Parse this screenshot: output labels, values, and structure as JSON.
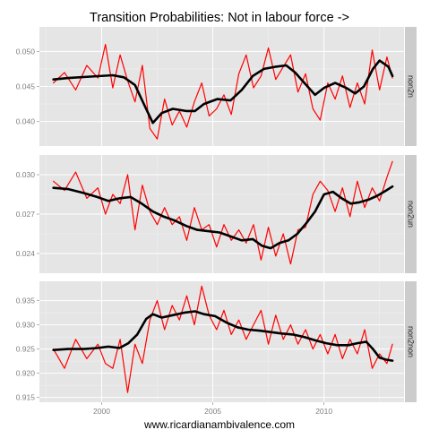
{
  "chart_data": {
    "type": "line",
    "title": "Transition Probabilities: Not in labour force ->",
    "caption": "www.ricardianambivalence.com",
    "xlabel": "",
    "ylabel": "",
    "grid": true,
    "legend": "none",
    "colors": {
      "raw": "#ff0000",
      "smooth": "#000000",
      "panel": "#e5e5e5",
      "strip": "#cccccc"
    },
    "x_axis": {
      "ticks": [
        2000,
        2005,
        2010
      ],
      "xlim": [
        1997.2,
        2013.6
      ]
    },
    "panels": [
      {
        "strip": "non2n",
        "ylim": [
          0.0365,
          0.0535
        ],
        "yticks": [
          0.04,
          0.045,
          0.05
        ],
        "ytick_labels": [
          "0.040",
          "0.045",
          "0.050"
        ],
        "series": [
          {
            "name": "raw",
            "x": [
              1997.83,
              1998.33,
              1998.83,
              1999.33,
              1999.83,
              2000.17,
              2000.5,
              2000.83,
              2001.17,
              2001.5,
              2001.83,
              2002.17,
              2002.5,
              2002.83,
              2003.17,
              2003.5,
              2003.83,
              2004.17,
              2004.5,
              2004.83,
              2005.17,
              2005.5,
              2005.83,
              2006.17,
              2006.5,
              2006.83,
              2007.17,
              2007.5,
              2007.83,
              2008.17,
              2008.5,
              2008.83,
              2009.17,
              2009.5,
              2009.83,
              2010.17,
              2010.5,
              2010.83,
              2011.17,
              2011.5,
              2011.83,
              2012.17,
              2012.5,
              2012.83,
              2013.08
            ],
            "y": [
              0.0455,
              0.047,
              0.0445,
              0.048,
              0.0462,
              0.051,
              0.0448,
              0.0495,
              0.0458,
              0.0428,
              0.048,
              0.039,
              0.0375,
              0.0432,
              0.0395,
              0.0415,
              0.0392,
              0.0428,
              0.0455,
              0.0408,
              0.0418,
              0.0438,
              0.041,
              0.0468,
              0.0495,
              0.0448,
              0.0465,
              0.0505,
              0.046,
              0.0478,
              0.0495,
              0.0442,
              0.0468,
              0.0418,
              0.0402,
              0.0455,
              0.0432,
              0.0465,
              0.042,
              0.0455,
              0.0425,
              0.0502,
              0.0445,
              0.0492,
              0.0462
            ]
          },
          {
            "name": "smooth",
            "x": [
              1997.83,
              1998.5,
              1999.5,
              2000.5,
              2001.0,
              2001.5,
              2002.0,
              2002.3,
              2002.7,
              2003.2,
              2003.8,
              2004.2,
              2004.6,
              2005.2,
              2005.8,
              2006.3,
              2006.8,
              2007.3,
              2007.8,
              2008.3,
              2008.7,
              2009.2,
              2009.6,
              2010.0,
              2010.5,
              2011.0,
              2011.4,
              2011.8,
              2012.2,
              2012.5,
              2012.9,
              2013.08
            ],
            "y": [
              0.046,
              0.0462,
              0.0464,
              0.0466,
              0.0463,
              0.0452,
              0.0418,
              0.0398,
              0.0412,
              0.0418,
              0.0415,
              0.0415,
              0.0425,
              0.0432,
              0.043,
              0.0445,
              0.0465,
              0.0475,
              0.0478,
              0.048,
              0.047,
              0.0452,
              0.0438,
              0.0448,
              0.0455,
              0.0448,
              0.044,
              0.045,
              0.0475,
              0.0487,
              0.0478,
              0.0465
            ]
          }
        ]
      },
      {
        "strip": "non2un",
        "ylim": [
          0.0225,
          0.0315
        ],
        "yticks": [
          0.024,
          0.027,
          0.03
        ],
        "ytick_labels": [
          "0.024",
          "0.027",
          "0.030"
        ],
        "series": [
          {
            "name": "raw",
            "x": [
              1997.83,
              1998.33,
              1998.83,
              1999.33,
              1999.83,
              2000.17,
              2000.5,
              2000.83,
              2001.17,
              2001.5,
              2001.83,
              2002.17,
              2002.5,
              2002.83,
              2003.17,
              2003.5,
              2003.83,
              2004.17,
              2004.5,
              2004.83,
              2005.17,
              2005.5,
              2005.83,
              2006.17,
              2006.5,
              2006.83,
              2007.17,
              2007.5,
              2007.83,
              2008.17,
              2008.5,
              2008.83,
              2009.17,
              2009.5,
              2009.83,
              2010.17,
              2010.5,
              2010.83,
              2011.17,
              2011.5,
              2011.83,
              2012.17,
              2012.5,
              2012.83,
              2013.08
            ],
            "y": [
              0.0295,
              0.0288,
              0.0302,
              0.0282,
              0.029,
              0.027,
              0.0285,
              0.0278,
              0.03,
              0.0258,
              0.0292,
              0.0272,
              0.0262,
              0.0275,
              0.0262,
              0.0268,
              0.025,
              0.0275,
              0.0258,
              0.0262,
              0.0245,
              0.0262,
              0.025,
              0.0258,
              0.0248,
              0.0262,
              0.0235,
              0.026,
              0.0238,
              0.0255,
              0.0232,
              0.0258,
              0.026,
              0.0285,
              0.0295,
              0.0288,
              0.0272,
              0.029,
              0.0268,
              0.0295,
              0.0275,
              0.029,
              0.028,
              0.0298,
              0.031
            ]
          },
          {
            "name": "smooth",
            "x": [
              1997.83,
              1998.5,
              1999.2,
              1999.8,
              2000.3,
              2000.8,
              2001.3,
              2001.8,
              2002.3,
              2002.8,
              2003.3,
              2003.8,
              2004.3,
              2004.8,
              2005.3,
              2005.8,
              2006.3,
              2006.8,
              2007.2,
              2007.6,
              2008.0,
              2008.4,
              2008.8,
              2009.2,
              2009.6,
              2010.0,
              2010.4,
              2010.8,
              2011.2,
              2011.6,
              2012.0,
              2012.4,
              2012.8,
              2013.08
            ],
            "y": [
              0.029,
              0.0289,
              0.0286,
              0.0283,
              0.028,
              0.0282,
              0.0283,
              0.0278,
              0.0272,
              0.0268,
              0.0265,
              0.0261,
              0.0258,
              0.0257,
              0.0256,
              0.0253,
              0.025,
              0.0251,
              0.0246,
              0.0244,
              0.0248,
              0.025,
              0.0255,
              0.0263,
              0.0272,
              0.0285,
              0.0287,
              0.0282,
              0.0278,
              0.0279,
              0.0281,
              0.0284,
              0.0288,
              0.0291
            ]
          }
        ]
      },
      {
        "strip": "non2non",
        "ylim": [
          0.914,
          0.939
        ],
        "yticks": [
          0.915,
          0.92,
          0.925,
          0.93,
          0.935
        ],
        "ytick_labels": [
          "0.915",
          "0.920",
          "0.925",
          "0.930",
          "0.935"
        ],
        "series": [
          {
            "name": "raw",
            "x": [
              1997.83,
              1998.33,
              1998.83,
              1999.33,
              1999.83,
              2000.17,
              2000.5,
              2000.83,
              2001.17,
              2001.5,
              2001.83,
              2002.17,
              2002.5,
              2002.83,
              2003.17,
              2003.5,
              2003.83,
              2004.17,
              2004.5,
              2004.83,
              2005.17,
              2005.5,
              2005.83,
              2006.17,
              2006.5,
              2006.83,
              2007.17,
              2007.5,
              2007.83,
              2008.17,
              2008.5,
              2008.83,
              2009.17,
              2009.5,
              2009.83,
              2010.17,
              2010.5,
              2010.83,
              2011.17,
              2011.5,
              2011.83,
              2012.17,
              2012.5,
              2012.83,
              2013.08
            ],
            "y": [
              0.925,
              0.921,
              0.927,
              0.923,
              0.926,
              0.922,
              0.921,
              0.927,
              0.916,
              0.926,
              0.922,
              0.931,
              0.935,
              0.929,
              0.934,
              0.931,
              0.936,
              0.93,
              0.938,
              0.932,
              0.929,
              0.933,
              0.928,
              0.931,
              0.927,
              0.93,
              0.933,
              0.926,
              0.932,
              0.927,
              0.93,
              0.926,
              0.929,
              0.925,
              0.928,
              0.924,
              0.928,
              0.923,
              0.927,
              0.924,
              0.929,
              0.921,
              0.924,
              0.922,
              0.926
            ]
          },
          {
            "name": "smooth",
            "x": [
              1997.83,
              1998.5,
              1999.2,
              1999.8,
              2000.3,
              2000.8,
              2001.2,
              2001.6,
              2002.0,
              2002.3,
              2002.7,
              2003.2,
              2003.7,
              2004.2,
              2004.6,
              2005.1,
              2005.6,
              2006.1,
              2006.6,
              2007.1,
              2007.6,
              2008.1,
              2008.6,
              2009.1,
              2009.6,
              2010.1,
              2010.6,
              2011.1,
              2011.5,
              2011.9,
              2012.2,
              2012.5,
              2012.8,
              2013.08
            ],
            "y": [
              0.9248,
              0.925,
              0.925,
              0.9252,
              0.9255,
              0.9252,
              0.9262,
              0.928,
              0.9312,
              0.9322,
              0.9315,
              0.932,
              0.9325,
              0.9328,
              0.9322,
              0.9318,
              0.9305,
              0.9295,
              0.929,
              0.9288,
              0.9285,
              0.9282,
              0.928,
              0.9275,
              0.9268,
              0.9262,
              0.9258,
              0.9258,
              0.9262,
              0.9265,
              0.925,
              0.9232,
              0.9228,
              0.9226
            ]
          }
        ]
      }
    ]
  }
}
